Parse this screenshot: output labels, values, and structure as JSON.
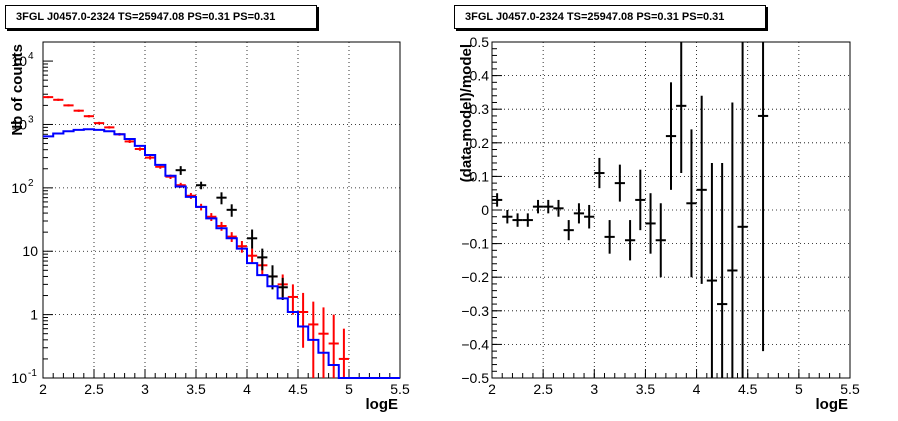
{
  "panels": [
    {
      "title": "3FGL J0457.0-2324 TS=25947.08 PS=0.31 PS=0.31"
    },
    {
      "title": "3FGL J0457.0-2324 TS=25947.08 PS=0.31 PS=0.31"
    }
  ],
  "chart_data": [
    {
      "type": "step",
      "title": "3FGL J0457.0-2324 TS=25947.08 PS=0.31 PS=0.31",
      "xlabel": "logE",
      "ylabel": "Nb of counts",
      "xlim": [
        2,
        5.5
      ],
      "ylim": [
        0.1,
        20000
      ],
      "yscale": "log",
      "grid": true,
      "x_ticks": [
        "2",
        "2.5",
        "3",
        "3.5",
        "4",
        "4.5",
        "5",
        "5.5"
      ],
      "y_ticks": [
        "10^-1",
        "1",
        "10",
        "10^2",
        "10^3",
        "10^4"
      ],
      "bin_edges": [
        2.0,
        2.1,
        2.2,
        2.3,
        2.4,
        2.5,
        2.6,
        2.7,
        2.8,
        2.9,
        3.0,
        3.1,
        3.2,
        3.3,
        3.4,
        3.5,
        3.6,
        3.7,
        3.8,
        3.9,
        4.0,
        4.1,
        4.2,
        4.3,
        4.4,
        4.5,
        4.6,
        4.7,
        4.8,
        4.9,
        5.0,
        5.1,
        5.2,
        5.3,
        5.4,
        5.5
      ],
      "series": [
        {
          "kind": "data",
          "color": "#ff0000",
          "values": [
            2700,
            2450,
            2000,
            1650,
            1350,
            1050,
            900,
            700,
            540,
            410,
            300,
            215,
            150,
            110,
            75,
            50,
            35,
            25,
            17,
            12,
            8.5,
            6,
            4.0,
            3.0,
            1.9,
            1.1,
            0.7,
            0.5,
            0.35,
            0.2,
            0.1,
            0.1,
            0.1,
            0.1,
            0.1
          ],
          "err_low": [
            2600,
            2350,
            1920,
            1580,
            1290,
            1000,
            860,
            665,
            510,
            385,
            280,
            200,
            138,
            100,
            67,
            44,
            30,
            21,
            14,
            9.5,
            6.5,
            4.3,
            2.7,
            1.9,
            1.0,
            0.3,
            0.1,
            0.1,
            0.1,
            0.1,
            0.1,
            0.1,
            0.1,
            0.1,
            0.1
          ],
          "err_high": [
            2800,
            2550,
            2080,
            1720,
            1410,
            1100,
            940,
            735,
            570,
            435,
            320,
            230,
            162,
            120,
            83,
            56,
            40,
            29,
            20,
            14.5,
            11,
            8.0,
            5.5,
            4.3,
            3.0,
            2.2,
            1.6,
            1.3,
            1.0,
            0.6,
            0.1,
            0.1,
            0.1,
            0.1,
            0.1
          ]
        },
        {
          "kind": "data",
          "color": "#000000",
          "values": [
            null,
            null,
            null,
            null,
            null,
            null,
            null,
            null,
            null,
            null,
            null,
            null,
            null,
            190,
            null,
            110,
            null,
            70,
            45,
            null,
            16,
            8,
            4,
            2.7,
            null,
            null,
            null,
            null,
            null,
            null,
            null,
            null,
            null,
            null,
            null
          ],
          "err_low": [
            null,
            null,
            null,
            null,
            null,
            null,
            null,
            null,
            null,
            null,
            null,
            null,
            null,
            160,
            null,
            95,
            null,
            55,
            35,
            null,
            11,
            5,
            2.5,
            1.7,
            null,
            null,
            null,
            null,
            null,
            null,
            null,
            null,
            null,
            null,
            null
          ],
          "err_high": [
            null,
            null,
            null,
            null,
            null,
            null,
            null,
            null,
            null,
            null,
            null,
            null,
            null,
            220,
            null,
            125,
            null,
            85,
            55,
            null,
            22,
            11,
            6,
            3.8,
            null,
            null,
            null,
            null,
            null,
            null,
            null,
            null,
            null,
            null,
            null
          ]
        },
        {
          "kind": "model",
          "color": "#0000ff",
          "values": [
            650,
            720,
            780,
            820,
            840,
            820,
            780,
            700,
            590,
            460,
            330,
            230,
            155,
            105,
            72,
            50,
            33,
            23,
            16,
            11,
            6.5,
            4.2,
            2.8,
            1.8,
            1.1,
            0.65,
            0.4,
            0.25,
            0.16,
            0.1,
            0.1,
            0.1,
            0.1,
            0.1,
            0.1
          ]
        }
      ]
    },
    {
      "type": "scatter",
      "title": "3FGL J0457.0-2324 TS=25947.08 PS=0.31 PS=0.31",
      "xlabel": "logE",
      "ylabel": "(data-model)/model",
      "xlim": [
        2,
        5.5
      ],
      "ylim": [
        -0.5,
        0.5
      ],
      "grid": true,
      "x_ticks": [
        "2",
        "2.5",
        "3",
        "3.5",
        "4",
        "4.5",
        "5",
        "5.5"
      ],
      "y_ticks": [
        "-0.5",
        "-0.4",
        "-0.3",
        "-0.2",
        "-0.1",
        "0",
        "0.1",
        "0.2",
        "0.3",
        "0.4",
        "0.5"
      ],
      "points": [
        {
          "x": 2.05,
          "y": 0.03,
          "yerr": 0.02
        },
        {
          "x": 2.15,
          "y": -0.02,
          "yerr": 0.02
        },
        {
          "x": 2.25,
          "y": -0.03,
          "yerr": 0.02
        },
        {
          "x": 2.35,
          "y": -0.03,
          "yerr": 0.02
        },
        {
          "x": 2.45,
          "y": 0.01,
          "yerr": 0.02
        },
        {
          "x": 2.55,
          "y": 0.01,
          "yerr": 0.02
        },
        {
          "x": 2.65,
          "y": 0.005,
          "yerr": 0.025
        },
        {
          "x": 2.75,
          "y": -0.06,
          "yerr": 0.03
        },
        {
          "x": 2.85,
          "y": -0.01,
          "yerr": 0.03
        },
        {
          "x": 2.95,
          "y": -0.02,
          "yerr": 0.035
        },
        {
          "x": 3.05,
          "y": 0.11,
          "yerr": 0.045
        },
        {
          "x": 3.15,
          "y": -0.08,
          "yerr": 0.05
        },
        {
          "x": 3.25,
          "y": 0.08,
          "yerr": 0.055
        },
        {
          "x": 3.35,
          "y": -0.09,
          "yerr": 0.06
        },
        {
          "x": 3.45,
          "y": 0.03,
          "yerr": 0.09
        },
        {
          "x": 3.55,
          "y": -0.04,
          "yerr": 0.09
        },
        {
          "x": 3.65,
          "y": -0.09,
          "yerr": 0.11
        },
        {
          "x": 3.75,
          "y": 0.22,
          "yerr": 0.16
        },
        {
          "x": 3.85,
          "y": 0.31,
          "yerr": 0.2
        },
        {
          "x": 3.95,
          "y": 0.02,
          "yerr": 0.22
        },
        {
          "x": 4.05,
          "y": 0.06,
          "yerr": 0.28
        },
        {
          "x": 4.15,
          "y": -0.21,
          "yerr": 0.35
        },
        {
          "x": 4.25,
          "y": -0.28,
          "yerr": 0.42
        },
        {
          "x": 4.35,
          "y": -0.18,
          "yerr": 0.5
        },
        {
          "x": 4.45,
          "y": -0.05,
          "yerr": 0.6
        },
        {
          "x": 4.65,
          "y": 0.28,
          "yerr": 0.7
        }
      ]
    }
  ]
}
